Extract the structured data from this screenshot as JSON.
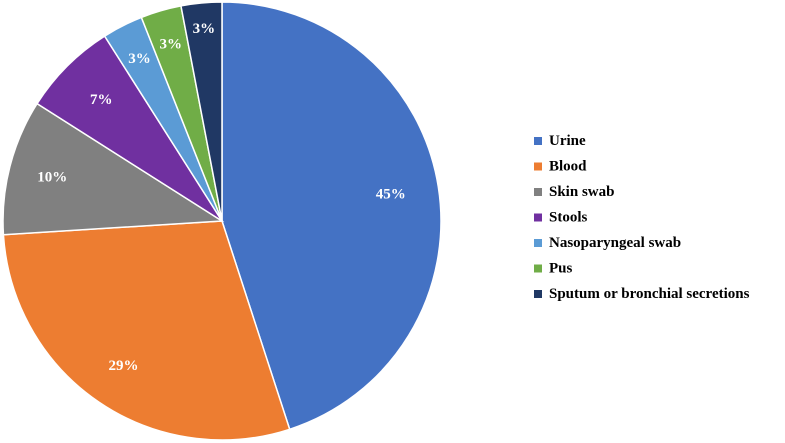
{
  "chart_data": {
    "type": "pie",
    "title": "",
    "categories": [
      "Urine",
      "Blood",
      "Skin swab",
      "Stools",
      "Nasoparyngeal swab",
      "Pus",
      "Sputum or bronchial secretions"
    ],
    "values": [
      45,
      29,
      10,
      7,
      3,
      3,
      3
    ],
    "labels": [
      "45%",
      "29%",
      "10%",
      "7%",
      "3%",
      "3%",
      "3%"
    ],
    "colors": [
      "#4472C4",
      "#ED7D31",
      "#808080",
      "#7030A0",
      "#5B9BD5",
      "#70AD47",
      "#203864"
    ],
    "start_angle": "12 o'clock",
    "direction": "clockwise",
    "legend_position": "right"
  }
}
